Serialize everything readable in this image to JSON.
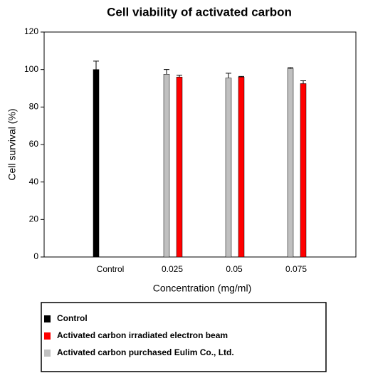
{
  "chart_data": {
    "type": "bar",
    "title": "Cell viability of activated carbon",
    "x_label": "Concentration (mg/ml)",
    "y_label": "Cell survival (%)",
    "categories": [
      "Control",
      "0.025",
      "0.05",
      "0.075"
    ],
    "series": [
      {
        "name": "Control",
        "color": "#000000",
        "values": [
          100,
          null,
          null,
          null
        ],
        "errors": [
          4.5,
          null,
          null,
          null
        ]
      },
      {
        "name": "Activated carbon irradiated electron beam",
        "color": "#ff0000",
        "values": [
          null,
          96,
          96,
          92.5
        ],
        "errors": [
          null,
          1,
          0.3,
          1.5
        ]
      },
      {
        "name": "Activated carbon purchased Eulim Co., Ltd.",
        "color": "#c0c0c0",
        "values": [
          null,
          97.5,
          95.5,
          100.5
        ],
        "errors": [
          null,
          2.5,
          2.5,
          0.5
        ]
      }
    ],
    "ylim": [
      0,
      120
    ],
    "yticks": [
      0,
      20,
      40,
      60,
      80,
      100,
      120
    ],
    "legend": "bottom"
  }
}
